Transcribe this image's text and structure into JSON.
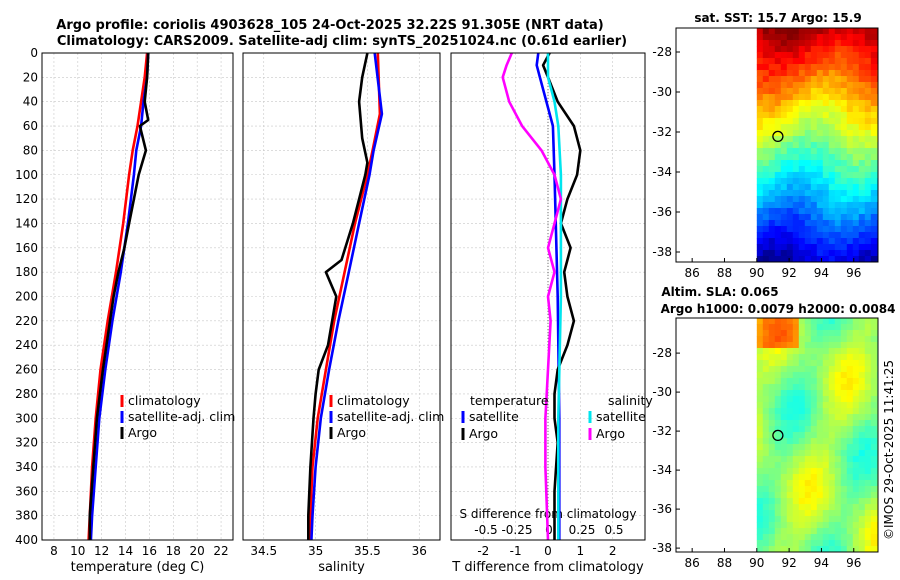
{
  "title_line1": "Argo profile: coriolis 4903628_105 24-Oct-2025 32.22S 91.305E (NRT data)",
  "title_line2": "Climatology: CARS2009. Satellite-adj clim: synTS_20251024.nc (0.61d earlier)",
  "colors": {
    "clim": "#ff0000",
    "sat": "#0000ff",
    "argo": "#000000",
    "sal_sat": "#00e5ee",
    "sal_diff": "#ff00ff"
  },
  "chart_data": [
    {
      "type": "line",
      "id": "temperature",
      "xlabel": "temperature (deg C)",
      "xlim": [
        7,
        23
      ],
      "xticks": [
        8,
        10,
        12,
        14,
        16,
        18,
        20,
        22
      ],
      "xtick_labels": [
        "8",
        "10",
        "12",
        "14",
        "16",
        "18",
        "20",
        "22"
      ],
      "ylim": [
        0,
        400
      ],
      "yticks": [
        0,
        20,
        40,
        60,
        80,
        100,
        120,
        140,
        160,
        180,
        200,
        220,
        240,
        260,
        280,
        300,
        320,
        340,
        360,
        380,
        400
      ],
      "yreversed": true,
      "grid": true,
      "legend": {
        "position": "lower-right",
        "entries": [
          "climatology",
          "satellite-adj. clim",
          "Argo"
        ]
      },
      "series": [
        {
          "name": "climatology",
          "color": "#ff0000",
          "depth": [
            0,
            20,
            40,
            60,
            80,
            100,
            140,
            180,
            220,
            260,
            300,
            340,
            380,
            400
          ],
          "values": [
            15.8,
            15.6,
            15.3,
            15.0,
            14.6,
            14.3,
            13.8,
            13.2,
            12.5,
            11.9,
            11.5,
            11.2,
            11.0,
            10.9
          ]
        },
        {
          "name": "satellite-adj. clim",
          "color": "#0000ff",
          "depth": [
            0,
            20,
            40,
            60,
            80,
            100,
            140,
            180,
            220,
            260,
            300,
            340,
            380,
            400
          ],
          "values": [
            15.9,
            15.8,
            15.5,
            15.3,
            14.9,
            14.7,
            14.2,
            13.6,
            12.9,
            12.3,
            11.8,
            11.5,
            11.2,
            11.1
          ]
        },
        {
          "name": "Argo",
          "color": "#000000",
          "depth": [
            0,
            20,
            40,
            55,
            60,
            80,
            100,
            120,
            140,
            160,
            180,
            200,
            220,
            260,
            300,
            340,
            380,
            400
          ],
          "values": [
            15.9,
            15.8,
            15.6,
            15.9,
            15.2,
            15.7,
            15.1,
            14.7,
            14.3,
            13.9,
            13.4,
            13.0,
            12.7,
            12.1,
            11.6,
            11.3,
            11.0,
            11.0
          ]
        }
      ]
    },
    {
      "type": "line",
      "id": "salinity",
      "xlabel": "salinity",
      "xlim": [
        34.3,
        36.2
      ],
      "xticks": [
        34.5,
        35,
        35.5,
        36
      ],
      "xtick_labels": [
        "34.5",
        "35",
        "35.5",
        "36"
      ],
      "ylim": [
        0,
        400
      ],
      "yreversed": true,
      "grid": true,
      "legend": {
        "position": "lower-right",
        "entries": [
          "climatology",
          "satellite-adj. clim",
          "Argo"
        ]
      },
      "series": [
        {
          "name": "climatology",
          "color": "#ff0000",
          "depth": [
            0,
            50,
            80,
            100,
            140,
            180,
            220,
            260,
            300,
            340,
            380,
            400
          ],
          "values": [
            35.6,
            35.62,
            35.55,
            35.5,
            35.38,
            35.28,
            35.18,
            35.1,
            35.02,
            34.97,
            34.95,
            34.94
          ]
        },
        {
          "name": "satellite-adj. clim",
          "color": "#0000ff",
          "depth": [
            0,
            50,
            80,
            100,
            140,
            180,
            220,
            260,
            300,
            340,
            380,
            400
          ],
          "values": [
            35.57,
            35.64,
            35.56,
            35.52,
            35.42,
            35.32,
            35.22,
            35.13,
            35.05,
            35.0,
            34.97,
            34.96
          ]
        },
        {
          "name": "Argo",
          "color": "#000000",
          "depth": [
            0,
            20,
            40,
            70,
            90,
            100,
            140,
            170,
            180,
            200,
            240,
            260,
            280,
            300,
            340,
            380,
            400
          ],
          "values": [
            35.5,
            35.45,
            35.42,
            35.45,
            35.5,
            35.48,
            35.36,
            35.25,
            35.1,
            35.2,
            35.12,
            35.03,
            35.0,
            34.98,
            34.95,
            34.93,
            34.93
          ]
        }
      ]
    },
    {
      "type": "line",
      "id": "difference",
      "xlabel": "T difference from climatology",
      "xlim": [
        -3,
        3
      ],
      "xticks": [
        -2,
        -1,
        0,
        1,
        2
      ],
      "xtick_labels": [
        "-2",
        "-1",
        "0",
        "1",
        "2"
      ],
      "top_axis_label": "S difference from climatology",
      "top_ticks": [
        -0.5,
        -0.25,
        0,
        0.25,
        0.5
      ],
      "top_tick_labels": [
        "-0.5",
        "-0.25",
        "0",
        "0.25",
        "0.5"
      ],
      "ylim": [
        0,
        400
      ],
      "yreversed": true,
      "grid": true,
      "legend": {
        "position": "lower-center",
        "entries": [
          "temperature",
          "satellite",
          "Argo",
          "salinity",
          "satellite",
          "Argo"
        ]
      },
      "series": [
        {
          "name": "T satellite",
          "color": "#0000ff",
          "depth": [
            0,
            10,
            20,
            60,
            100,
            200,
            300,
            400
          ],
          "values": [
            -0.3,
            -0.35,
            -0.25,
            0.15,
            0.2,
            0.3,
            0.35,
            0.35
          ]
        },
        {
          "name": "T Argo",
          "color": "#000000",
          "depth": [
            0,
            10,
            20,
            40,
            60,
            80,
            100,
            120,
            140,
            160,
            170,
            180,
            200,
            220,
            240,
            260,
            280,
            300,
            320,
            360,
            400
          ],
          "values": [
            0.05,
            -0.15,
            0,
            0.3,
            0.8,
            1.0,
            0.9,
            0.6,
            0.4,
            0.7,
            0.6,
            0.5,
            0.6,
            0.8,
            0.6,
            0.3,
            0.2,
            0.2,
            0.3,
            0.2,
            0.2
          ]
        },
        {
          "name": "S satellite",
          "color": "#00e5ee",
          "depth": [
            0,
            20,
            40,
            60,
            100,
            200,
            300,
            400
          ],
          "values": [
            0.0,
            0.0,
            0.05,
            0.08,
            0.1,
            0.1,
            0.08,
            0.08
          ]
        },
        {
          "name": "S Argo",
          "color": "#ff00ff",
          "depth": [
            0,
            10,
            20,
            40,
            60,
            80,
            100,
            120,
            140,
            160,
            180,
            200,
            220,
            260,
            300,
            340,
            400
          ],
          "values": [
            -0.28,
            -0.32,
            -0.35,
            -0.3,
            -0.2,
            -0.05,
            0.05,
            0.1,
            0.05,
            0.0,
            0.05,
            0.0,
            0.02,
            0.0,
            -0.02,
            -0.02,
            0.0
          ]
        }
      ]
    },
    {
      "type": "heatmap",
      "id": "sst_map",
      "title": "sat. SST: 15.7 Argo: 15.9",
      "xlim": [
        85,
        97.5
      ],
      "xticks": [
        86,
        88,
        90,
        92,
        94,
        96
      ],
      "xtick_labels": [
        "86",
        "88",
        "90",
        "92",
        "94",
        "96"
      ],
      "ylim": [
        -38.5,
        -26.8
      ],
      "yticks": [
        -28,
        -30,
        -32,
        -34,
        -36,
        -38
      ],
      "ytick_labels": [
        "-28",
        "-30",
        "-32",
        "-34",
        "-36",
        "-38"
      ],
      "data_lon_start": 90,
      "argo_position": {
        "lon": 91.305,
        "lat": -32.22
      }
    },
    {
      "type": "heatmap",
      "id": "sla_map",
      "title_line1": "Altim. SLA: 0.065",
      "title_line2": "Argo h1000: 0.0079 h2000: 0.0084",
      "xlim": [
        85,
        97.5
      ],
      "xticks": [
        86,
        88,
        90,
        92,
        94,
        96
      ],
      "xtick_labels": [
        "86",
        "88",
        "90",
        "92",
        "94",
        "96"
      ],
      "ylim": [
        -38.2,
        -26.2
      ],
      "yticks": [
        -28,
        -30,
        -32,
        -34,
        -36,
        -38
      ],
      "ytick_labels": [
        "-28",
        "-30",
        "-32",
        "-34",
        "-36",
        "-38"
      ],
      "data_lon_start": 90,
      "argo_position": {
        "lon": 91.305,
        "lat": -32.22
      }
    }
  ],
  "watermark": "©IMOS 29-Oct-2025 11:41:25"
}
